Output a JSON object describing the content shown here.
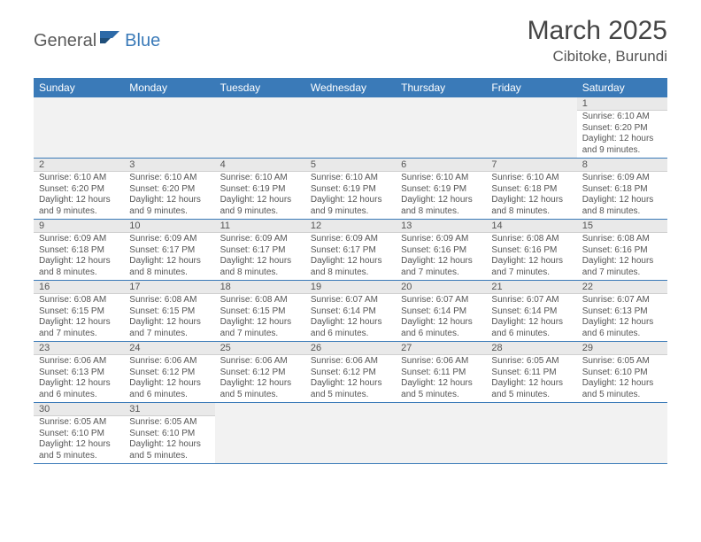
{
  "logo": {
    "text1": "General",
    "text2": "Blue"
  },
  "title": "March 2025",
  "location": "Cibitoke, Burundi",
  "colors": {
    "header_bg": "#3a7ab8",
    "header_text": "#ffffff",
    "daynum_bg": "#e9e9e9",
    "cell_text": "#555555",
    "border": "#3a7ab8",
    "logo_gray": "#5a5a5a",
    "logo_blue": "#3a7ab8"
  },
  "day_names": [
    "Sunday",
    "Monday",
    "Tuesday",
    "Wednesday",
    "Thursday",
    "Friday",
    "Saturday"
  ],
  "weeks": [
    [
      null,
      null,
      null,
      null,
      null,
      null,
      {
        "n": "1",
        "sr": "6:10 AM",
        "ss": "6:20 PM",
        "dl": "12 hours and 9 minutes."
      }
    ],
    [
      {
        "n": "2",
        "sr": "6:10 AM",
        "ss": "6:20 PM",
        "dl": "12 hours and 9 minutes."
      },
      {
        "n": "3",
        "sr": "6:10 AM",
        "ss": "6:20 PM",
        "dl": "12 hours and 9 minutes."
      },
      {
        "n": "4",
        "sr": "6:10 AM",
        "ss": "6:19 PM",
        "dl": "12 hours and 9 minutes."
      },
      {
        "n": "5",
        "sr": "6:10 AM",
        "ss": "6:19 PM",
        "dl": "12 hours and 9 minutes."
      },
      {
        "n": "6",
        "sr": "6:10 AM",
        "ss": "6:19 PM",
        "dl": "12 hours and 8 minutes."
      },
      {
        "n": "7",
        "sr": "6:10 AM",
        "ss": "6:18 PM",
        "dl": "12 hours and 8 minutes."
      },
      {
        "n": "8",
        "sr": "6:09 AM",
        "ss": "6:18 PM",
        "dl": "12 hours and 8 minutes."
      }
    ],
    [
      {
        "n": "9",
        "sr": "6:09 AM",
        "ss": "6:18 PM",
        "dl": "12 hours and 8 minutes."
      },
      {
        "n": "10",
        "sr": "6:09 AM",
        "ss": "6:17 PM",
        "dl": "12 hours and 8 minutes."
      },
      {
        "n": "11",
        "sr": "6:09 AM",
        "ss": "6:17 PM",
        "dl": "12 hours and 8 minutes."
      },
      {
        "n": "12",
        "sr": "6:09 AM",
        "ss": "6:17 PM",
        "dl": "12 hours and 8 minutes."
      },
      {
        "n": "13",
        "sr": "6:09 AM",
        "ss": "6:16 PM",
        "dl": "12 hours and 7 minutes."
      },
      {
        "n": "14",
        "sr": "6:08 AM",
        "ss": "6:16 PM",
        "dl": "12 hours and 7 minutes."
      },
      {
        "n": "15",
        "sr": "6:08 AM",
        "ss": "6:16 PM",
        "dl": "12 hours and 7 minutes."
      }
    ],
    [
      {
        "n": "16",
        "sr": "6:08 AM",
        "ss": "6:15 PM",
        "dl": "12 hours and 7 minutes."
      },
      {
        "n": "17",
        "sr": "6:08 AM",
        "ss": "6:15 PM",
        "dl": "12 hours and 7 minutes."
      },
      {
        "n": "18",
        "sr": "6:08 AM",
        "ss": "6:15 PM",
        "dl": "12 hours and 7 minutes."
      },
      {
        "n": "19",
        "sr": "6:07 AM",
        "ss": "6:14 PM",
        "dl": "12 hours and 6 minutes."
      },
      {
        "n": "20",
        "sr": "6:07 AM",
        "ss": "6:14 PM",
        "dl": "12 hours and 6 minutes."
      },
      {
        "n": "21",
        "sr": "6:07 AM",
        "ss": "6:14 PM",
        "dl": "12 hours and 6 minutes."
      },
      {
        "n": "22",
        "sr": "6:07 AM",
        "ss": "6:13 PM",
        "dl": "12 hours and 6 minutes."
      }
    ],
    [
      {
        "n": "23",
        "sr": "6:06 AM",
        "ss": "6:13 PM",
        "dl": "12 hours and 6 minutes."
      },
      {
        "n": "24",
        "sr": "6:06 AM",
        "ss": "6:12 PM",
        "dl": "12 hours and 6 minutes."
      },
      {
        "n": "25",
        "sr": "6:06 AM",
        "ss": "6:12 PM",
        "dl": "12 hours and 5 minutes."
      },
      {
        "n": "26",
        "sr": "6:06 AM",
        "ss": "6:12 PM",
        "dl": "12 hours and 5 minutes."
      },
      {
        "n": "27",
        "sr": "6:06 AM",
        "ss": "6:11 PM",
        "dl": "12 hours and 5 minutes."
      },
      {
        "n": "28",
        "sr": "6:05 AM",
        "ss": "6:11 PM",
        "dl": "12 hours and 5 minutes."
      },
      {
        "n": "29",
        "sr": "6:05 AM",
        "ss": "6:10 PM",
        "dl": "12 hours and 5 minutes."
      }
    ],
    [
      {
        "n": "30",
        "sr": "6:05 AM",
        "ss": "6:10 PM",
        "dl": "12 hours and 5 minutes."
      },
      {
        "n": "31",
        "sr": "6:05 AM",
        "ss": "6:10 PM",
        "dl": "12 hours and 5 minutes."
      },
      null,
      null,
      null,
      null,
      null
    ]
  ],
  "labels": {
    "sunrise": "Sunrise:",
    "sunset": "Sunset:",
    "daylight": "Daylight:"
  }
}
